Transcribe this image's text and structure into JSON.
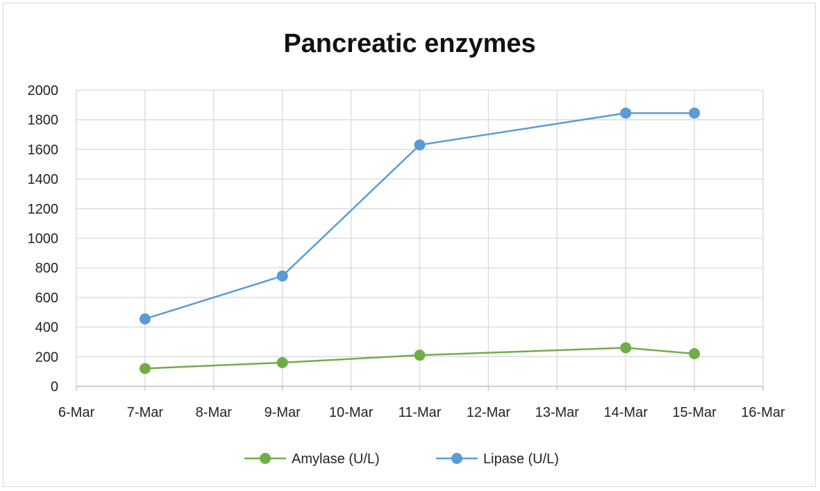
{
  "chart_data": {
    "type": "line",
    "title": "Pancreatic enzymes",
    "xlabel": "",
    "ylabel": "",
    "x_ticks": [
      "6-Mar",
      "7-Mar",
      "8-Mar",
      "9-Mar",
      "10-Mar",
      "11-Mar",
      "12-Mar",
      "13-Mar",
      "14-Mar",
      "15-Mar",
      "16-Mar"
    ],
    "y_ticks": [
      0,
      200,
      400,
      600,
      800,
      1000,
      1200,
      1400,
      1600,
      1800,
      2000
    ],
    "ylim": [
      0,
      2000
    ],
    "grid": true,
    "legend_position": "bottom",
    "series": [
      {
        "name": "Amylase (U/L)",
        "color": "#70ad47",
        "x": [
          "7-Mar",
          "9-Mar",
          "11-Mar",
          "14-Mar",
          "15-Mar"
        ],
        "values": [
          120,
          160,
          210,
          260,
          220
        ]
      },
      {
        "name": "Lipase (U/L)",
        "color": "#5b9bd5",
        "x": [
          "7-Mar",
          "9-Mar",
          "11-Mar",
          "14-Mar",
          "15-Mar"
        ],
        "values": [
          455,
          745,
          1630,
          1845,
          1845
        ]
      }
    ]
  }
}
